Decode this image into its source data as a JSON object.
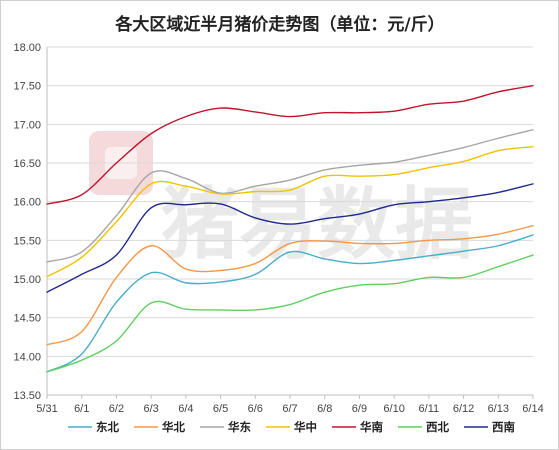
{
  "chart_data": {
    "type": "line",
    "title": "各大区域近半月猪价走势图（单位：元/斤）",
    "x": [
      "5/31",
      "6/1",
      "6/2",
      "6/3",
      "6/4",
      "6/5",
      "6/6",
      "6/7",
      "6/8",
      "6/9",
      "6/10",
      "6/11",
      "6/12",
      "6/13",
      "6/14"
    ],
    "ylim": [
      13.5,
      18.0
    ],
    "yticks": [
      "13.50",
      "14.00",
      "14.50",
      "15.00",
      "15.50",
      "16.00",
      "16.50",
      "17.00",
      "17.50",
      "18.00"
    ],
    "grid": true,
    "legend_position": "bottom",
    "watermark": "猪易数据",
    "series": [
      {
        "name": "东北",
        "color": "#4bacc6",
        "values": [
          13.8,
          14.03,
          14.7,
          15.08,
          14.95,
          14.96,
          15.06,
          15.35,
          15.26,
          15.2,
          15.24,
          15.3,
          15.36,
          15.43,
          15.57
        ]
      },
      {
        "name": "华北",
        "color": "#f79646",
        "values": [
          14.15,
          14.32,
          15.02,
          15.43,
          15.13,
          15.11,
          15.2,
          15.46,
          15.49,
          15.46,
          15.46,
          15.5,
          15.52,
          15.58,
          15.69
        ]
      },
      {
        "name": "华东",
        "color": "#a5a5a5",
        "values": [
          15.22,
          15.35,
          15.82,
          16.37,
          16.3,
          16.11,
          16.2,
          16.28,
          16.41,
          16.47,
          16.51,
          16.6,
          16.7,
          16.82,
          16.93
        ]
      },
      {
        "name": "华中",
        "color": "#f2c200",
        "values": [
          15.03,
          15.28,
          15.74,
          16.23,
          16.2,
          16.1,
          16.13,
          16.15,
          16.33,
          16.33,
          16.35,
          16.44,
          16.52,
          16.66,
          16.71
        ]
      },
      {
        "name": "华南",
        "color": "#c0142b",
        "values": [
          15.97,
          16.09,
          16.5,
          16.88,
          17.1,
          17.21,
          17.16,
          17.1,
          17.15,
          17.15,
          17.17,
          17.26,
          17.3,
          17.42,
          17.5
        ]
      },
      {
        "name": "西北",
        "color": "#5fcf5f",
        "values": [
          13.8,
          13.95,
          14.2,
          14.69,
          14.61,
          14.6,
          14.6,
          14.67,
          14.83,
          14.92,
          14.94,
          15.02,
          15.02,
          15.16,
          15.31
        ]
      },
      {
        "name": "西南",
        "color": "#1f2a8c",
        "values": [
          14.83,
          15.06,
          15.31,
          15.92,
          15.96,
          15.97,
          15.79,
          15.71,
          15.78,
          15.84,
          15.96,
          16.0,
          16.05,
          16.12,
          16.23
        ]
      }
    ]
  }
}
